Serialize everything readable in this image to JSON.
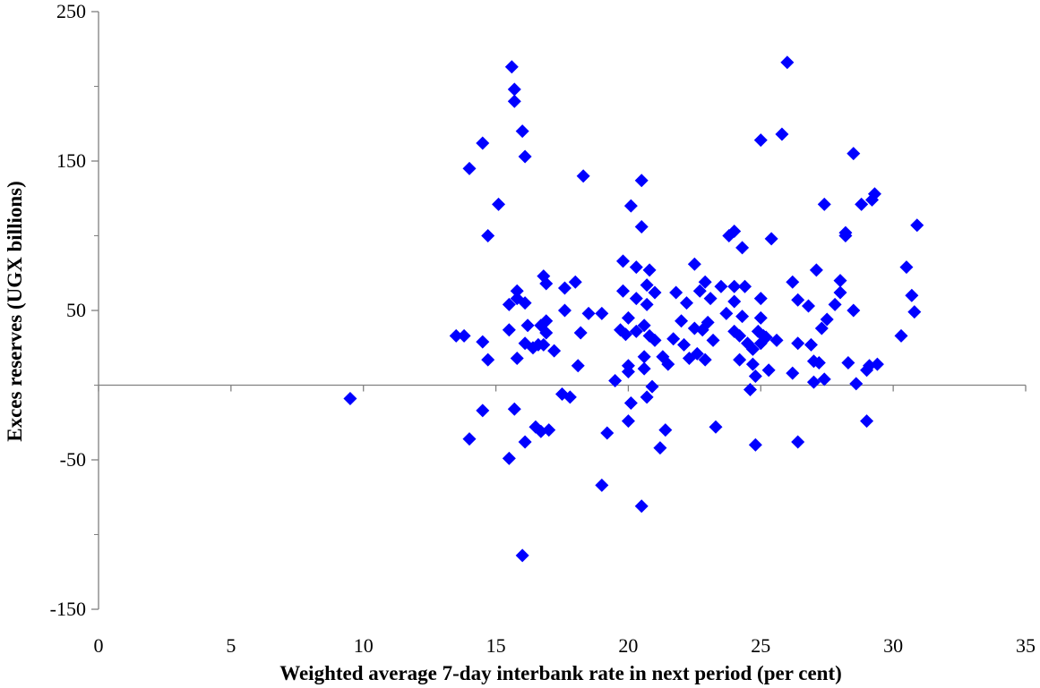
{
  "chart_data": {
    "type": "scatter",
    "xlabel": "Weighted average 7-day interbank rate in next period (per cent)",
    "ylabel": "Exces reserves (UGX billions)",
    "xlim": [
      0,
      35
    ],
    "ylim": [
      -150,
      250
    ],
    "x_ticks": [
      "0",
      "5",
      "10",
      "15",
      "20",
      "25",
      "30",
      "35"
    ],
    "y_ticks": [
      "250",
      "150",
      "50",
      "-50",
      "-150"
    ],
    "x_axis_crosses_y_at": 0,
    "grid": false,
    "marker": "diamond",
    "marker_color": "#0000FF",
    "points": [
      [
        9.5,
        -9
      ],
      [
        13.5,
        33
      ],
      [
        13.8,
        33
      ],
      [
        14.0,
        -36
      ],
      [
        14.0,
        145
      ],
      [
        14.5,
        -17
      ],
      [
        14.5,
        29
      ],
      [
        14.5,
        162
      ],
      [
        14.7,
        100
      ],
      [
        14.7,
        17
      ],
      [
        15.1,
        121
      ],
      [
        15.5,
        -49
      ],
      [
        15.5,
        54
      ],
      [
        15.5,
        37
      ],
      [
        15.6,
        213
      ],
      [
        15.7,
        198
      ],
      [
        15.7,
        190
      ],
      [
        15.7,
        -16
      ],
      [
        15.8,
        63
      ],
      [
        15.8,
        18
      ],
      [
        15.8,
        58
      ],
      [
        16.0,
        -114
      ],
      [
        16.0,
        170
      ],
      [
        16.1,
        153
      ],
      [
        16.1,
        -38
      ],
      [
        16.1,
        55
      ],
      [
        16.1,
        28
      ],
      [
        16.2,
        40
      ],
      [
        16.4,
        25
      ],
      [
        16.5,
        -28
      ],
      [
        16.6,
        27
      ],
      [
        16.7,
        -31
      ],
      [
        16.7,
        40
      ],
      [
        16.8,
        27
      ],
      [
        16.8,
        73
      ],
      [
        16.9,
        43
      ],
      [
        16.9,
        35
      ],
      [
        16.9,
        68
      ],
      [
        17.0,
        -30
      ],
      [
        17.2,
        23
      ],
      [
        17.5,
        -6
      ],
      [
        17.6,
        65
      ],
      [
        17.6,
        50
      ],
      [
        17.8,
        -8
      ],
      [
        18.0,
        69
      ],
      [
        18.1,
        13
      ],
      [
        18.2,
        35
      ],
      [
        18.3,
        140
      ],
      [
        18.5,
        48
      ],
      [
        19.0,
        -67
      ],
      [
        19.0,
        48
      ],
      [
        19.2,
        -32
      ],
      [
        19.5,
        3
      ],
      [
        19.7,
        37
      ],
      [
        19.8,
        83
      ],
      [
        19.8,
        63
      ],
      [
        19.9,
        34
      ],
      [
        20.0,
        9
      ],
      [
        20.0,
        13
      ],
      [
        20.0,
        45
      ],
      [
        20.0,
        -24
      ],
      [
        20.1,
        120
      ],
      [
        20.1,
        -12
      ],
      [
        20.3,
        36
      ],
      [
        20.3,
        58
      ],
      [
        20.3,
        79
      ],
      [
        20.5,
        -81
      ],
      [
        20.5,
        106
      ],
      [
        20.5,
        137
      ],
      [
        20.6,
        11
      ],
      [
        20.6,
        19
      ],
      [
        20.6,
        40
      ],
      [
        20.7,
        -8
      ],
      [
        20.7,
        67
      ],
      [
        20.7,
        54
      ],
      [
        20.8,
        77
      ],
      [
        20.8,
        33
      ],
      [
        20.9,
        -1
      ],
      [
        21.0,
        62
      ],
      [
        21.0,
        30
      ],
      [
        21.2,
        -42
      ],
      [
        21.3,
        19
      ],
      [
        21.4,
        -30
      ],
      [
        21.5,
        14
      ],
      [
        21.7,
        31
      ],
      [
        21.8,
        62
      ],
      [
        22.0,
        43
      ],
      [
        22.1,
        27
      ],
      [
        22.2,
        55
      ],
      [
        22.3,
        18
      ],
      [
        22.5,
        38
      ],
      [
        22.5,
        81
      ],
      [
        22.6,
        21
      ],
      [
        22.7,
        63
      ],
      [
        22.8,
        37
      ],
      [
        22.9,
        69
      ],
      [
        22.9,
        17
      ],
      [
        23.0,
        42
      ],
      [
        23.1,
        58
      ],
      [
        23.2,
        30
      ],
      [
        23.3,
        -28
      ],
      [
        23.5,
        66
      ],
      [
        23.7,
        48
      ],
      [
        23.8,
        100
      ],
      [
        24.0,
        56
      ],
      [
        24.0,
        103
      ],
      [
        24.0,
        66
      ],
      [
        24.0,
        36
      ],
      [
        24.2,
        33
      ],
      [
        24.2,
        17
      ],
      [
        24.3,
        92
      ],
      [
        24.3,
        46
      ],
      [
        24.4,
        66
      ],
      [
        24.5,
        28
      ],
      [
        24.6,
        -3
      ],
      [
        24.7,
        24
      ],
      [
        24.7,
        14
      ],
      [
        24.8,
        6
      ],
      [
        24.8,
        -40
      ],
      [
        24.9,
        36
      ],
      [
        25.0,
        45
      ],
      [
        25.0,
        28
      ],
      [
        25.0,
        164
      ],
      [
        25.0,
        58
      ],
      [
        25.1,
        33
      ],
      [
        25.2,
        32
      ],
      [
        25.3,
        10
      ],
      [
        25.4,
        98
      ],
      [
        25.6,
        30
      ],
      [
        25.8,
        168
      ],
      [
        26.0,
        216
      ],
      [
        26.2,
        69
      ],
      [
        26.2,
        8
      ],
      [
        26.4,
        -38
      ],
      [
        26.4,
        28
      ],
      [
        26.4,
        57
      ],
      [
        26.8,
        53
      ],
      [
        26.9,
        27
      ],
      [
        27.0,
        2
      ],
      [
        27.0,
        16
      ],
      [
        27.1,
        77
      ],
      [
        27.2,
        15
      ],
      [
        27.3,
        38
      ],
      [
        27.4,
        121
      ],
      [
        27.4,
        4
      ],
      [
        27.5,
        44
      ],
      [
        27.8,
        54
      ],
      [
        28.0,
        70
      ],
      [
        28.0,
        62
      ],
      [
        28.2,
        100
      ],
      [
        28.2,
        102
      ],
      [
        28.3,
        15
      ],
      [
        28.5,
        155
      ],
      [
        28.5,
        50
      ],
      [
        28.6,
        1
      ],
      [
        28.8,
        121
      ],
      [
        29.0,
        10
      ],
      [
        29.0,
        -24
      ],
      [
        29.1,
        13
      ],
      [
        29.2,
        124
      ],
      [
        29.3,
        128
      ],
      [
        29.4,
        14
      ],
      [
        30.3,
        33
      ],
      [
        30.5,
        79
      ],
      [
        30.7,
        60
      ],
      [
        30.8,
        49
      ],
      [
        30.9,
        107
      ]
    ]
  }
}
